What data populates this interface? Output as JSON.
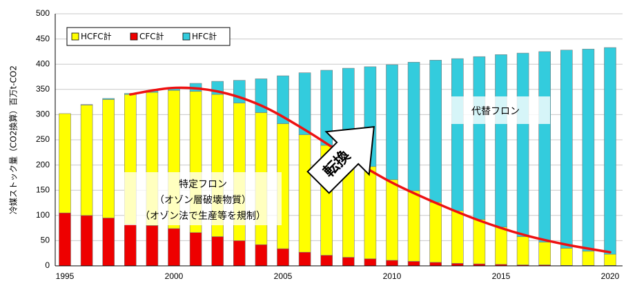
{
  "chart_data": {
    "type": "bar",
    "stacked": true,
    "ylabel": "冷媒ストック量（CO2換算）百万t-CO2",
    "ylim": [
      0,
      500
    ],
    "y_ticks": [
      0,
      50,
      100,
      150,
      200,
      250,
      300,
      350,
      400,
      450,
      500
    ],
    "x": [
      1995,
      1996,
      1997,
      1998,
      1999,
      2000,
      2001,
      2002,
      2003,
      2004,
      2005,
      2006,
      2007,
      2008,
      2009,
      2010,
      2011,
      2012,
      2013,
      2014,
      2015,
      2016,
      2017,
      2018,
      2019,
      2020
    ],
    "x_tick_labels": [
      "1995",
      "2000",
      "2005",
      "2010",
      "2015",
      "2020"
    ],
    "grid": "horizontal",
    "legend_position": "top-left",
    "series": [
      {
        "name": "HCFC計",
        "color": "#ffff00",
        "values": [
          197,
          219,
          235,
          258,
          264,
          274,
          280,
          282,
          273,
          262,
          248,
          233,
          218,
          201,
          183,
          160,
          140,
          119,
          104,
          88,
          74,
          56,
          45,
          34,
          28,
          22
        ]
      },
      {
        "name": "CFC計",
        "color": "#ee0000",
        "values": [
          105,
          100,
          95,
          82,
          80,
          74,
          66,
          58,
          50,
          42,
          34,
          27,
          21,
          17,
          14,
          11,
          9,
          7,
          5,
          4,
          3,
          2,
          2,
          1,
          1,
          1
        ]
      },
      {
        "name": "HFC計",
        "color": "#33ccdd",
        "values": [
          0,
          1,
          2,
          2,
          4,
          6,
          16,
          26,
          45,
          67,
          95,
          123,
          149,
          174,
          198,
          228,
          255,
          282,
          302,
          323,
          342,
          364,
          378,
          393,
          401,
          410
        ]
      }
    ],
    "curve": {
      "color": "#ee1111",
      "points": [
        [
          1998,
          340
        ],
        [
          2000,
          353
        ],
        [
          2002,
          346
        ],
        [
          2004,
          318
        ],
        [
          2006,
          270
        ],
        [
          2008,
          215
        ],
        [
          2010,
          165
        ],
        [
          2012,
          125
        ],
        [
          2014,
          90
        ],
        [
          2016,
          62
        ],
        [
          2018,
          42
        ],
        [
          2020,
          27
        ]
      ]
    },
    "annotations": {
      "specific_freon": [
        "特定フロン",
        "（オゾン層破壊物質）",
        "（オゾン法で生産等を規制）"
      ],
      "alternative_freon": "代替フロン",
      "arrow_label": "転換"
    }
  }
}
